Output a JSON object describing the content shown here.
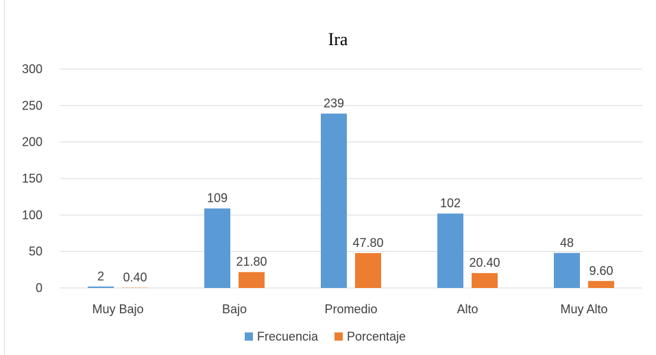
{
  "chart_data": {
    "type": "bar",
    "title": "Ira",
    "categories": [
      "Muy Bajo",
      "Bajo",
      "Promedio",
      "Alto",
      "Muy Alto"
    ],
    "series": [
      {
        "name": "Frecuencia",
        "values": [
          2,
          109,
          239,
          102,
          48
        ],
        "labels": [
          "2",
          "109",
          "239",
          "102",
          "48"
        ],
        "color": "#5b9bd5"
      },
      {
        "name": "Porcentaje",
        "values": [
          0.4,
          21.8,
          47.8,
          20.4,
          9.6
        ],
        "labels": [
          "0.40",
          "21.80",
          "47.80",
          "20.40",
          "9.60"
        ],
        "color": "#ed7d31"
      }
    ],
    "ylim": [
      0,
      300
    ],
    "yticks": [
      "0",
      "50",
      "100",
      "150",
      "200",
      "250",
      "300"
    ],
    "grid": true,
    "legend_position": "bottom",
    "colors": {
      "gridline": "#d9d9d9",
      "text": "#404040"
    }
  }
}
